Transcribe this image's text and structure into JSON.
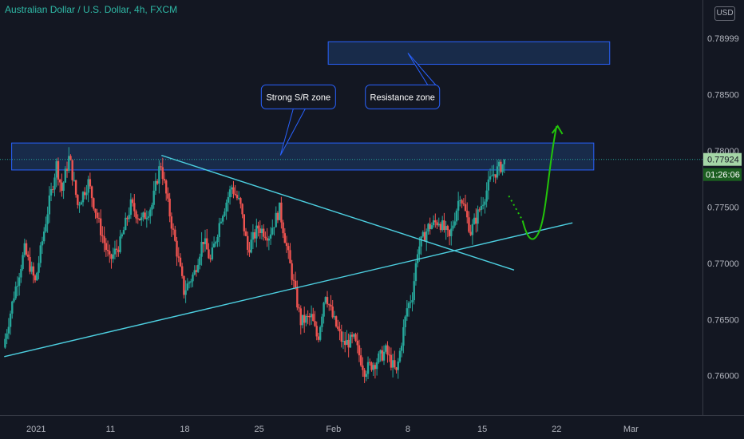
{
  "header": {
    "title": "Australian Dollar / U.S. Dollar, 4h, FXCM",
    "currency": "USD"
  },
  "colors": {
    "background": "#131722",
    "bull": "#26a69a",
    "bear": "#ef5350",
    "zone_fill": "#1e3d6b",
    "zone_border": "#2962ff",
    "trendline": "#4dd0e1",
    "projection": "#22c40a",
    "axis_text": "#b2b5be"
  },
  "chart_data": {
    "type": "candlestick",
    "title": "Australian Dollar / U.S. Dollar, 4h, FXCM",
    "x_ticks": [
      "2021",
      "11",
      "18",
      "25",
      "Feb",
      "8",
      "15",
      "22",
      "Mar"
    ],
    "x_tick_days": [
      4,
      11,
      18,
      25,
      32,
      39,
      46,
      53,
      60
    ],
    "x_range_days": [
      1,
      63
    ],
    "y_ticks": [
      "0.76000",
      "0.76500",
      "0.77000",
      "0.77500",
      "0.78000",
      "0.78500",
      "0.78999"
    ],
    "y_tick_values": [
      0.76,
      0.765,
      0.77,
      0.775,
      0.78,
      0.785,
      0.79
    ],
    "ylim": [
      0.757,
      0.7915
    ],
    "last_price": "0.77924",
    "last_price_value": 0.77924,
    "countdown": "01:26:06",
    "grid": false,
    "anchors": [
      {
        "day": 1.0,
        "price": 0.7625
      },
      {
        "day": 2.0,
        "price": 0.7672
      },
      {
        "day": 3.0,
        "price": 0.7712
      },
      {
        "day": 4.0,
        "price": 0.7683
      },
      {
        "day": 5.0,
        "price": 0.7738
      },
      {
        "day": 6.0,
        "price": 0.7788
      },
      {
        "day": 6.5,
        "price": 0.7765
      },
      {
        "day": 7.2,
        "price": 0.7795
      },
      {
        "day": 8.0,
        "price": 0.7752
      },
      {
        "day": 9.0,
        "price": 0.7772
      },
      {
        "day": 10.0,
        "price": 0.7735
      },
      {
        "day": 11.0,
        "price": 0.7702
      },
      {
        "day": 12.0,
        "price": 0.7718
      },
      {
        "day": 13.0,
        "price": 0.7752
      },
      {
        "day": 14.0,
        "price": 0.7738
      },
      {
        "day": 15.0,
        "price": 0.7752
      },
      {
        "day": 15.8,
        "price": 0.779
      },
      {
        "day": 16.5,
        "price": 0.7752
      },
      {
        "day": 17.5,
        "price": 0.7702
      },
      {
        "day": 18.0,
        "price": 0.7675
      },
      {
        "day": 19.0,
        "price": 0.7692
      },
      {
        "day": 19.8,
        "price": 0.7722
      },
      {
        "day": 20.5,
        "price": 0.7702
      },
      {
        "day": 21.5,
        "price": 0.7742
      },
      {
        "day": 22.5,
        "price": 0.7768
      },
      {
        "day": 23.3,
        "price": 0.7752
      },
      {
        "day": 24.0,
        "price": 0.7712
      },
      {
        "day": 25.0,
        "price": 0.7732
      },
      {
        "day": 26.0,
        "price": 0.7725
      },
      {
        "day": 27.0,
        "price": 0.7748
      },
      {
        "day": 28.0,
        "price": 0.7698
      },
      {
        "day": 29.0,
        "price": 0.7648
      },
      {
        "day": 30.0,
        "price": 0.7652
      },
      {
        "day": 30.6,
        "price": 0.7632
      },
      {
        "day": 31.3,
        "price": 0.7675
      },
      {
        "day": 32.0,
        "price": 0.7652
      },
      {
        "day": 33.0,
        "price": 0.7628
      },
      {
        "day": 34.0,
        "price": 0.7632
      },
      {
        "day": 35.0,
        "price": 0.7605
      },
      {
        "day": 36.0,
        "price": 0.7612
      },
      {
        "day": 37.0,
        "price": 0.7622
      },
      {
        "day": 38.0,
        "price": 0.7602
      },
      {
        "day": 39.0,
        "price": 0.766
      },
      {
        "day": 39.5,
        "price": 0.7672
      },
      {
        "day": 40.0,
        "price": 0.7712
      },
      {
        "day": 41.0,
        "price": 0.7732
      },
      {
        "day": 42.0,
        "price": 0.7738
      },
      {
        "day": 43.0,
        "price": 0.7722
      },
      {
        "day": 44.0,
        "price": 0.7762
      },
      {
        "day": 45.0,
        "price": 0.7728
      },
      {
        "day": 46.0,
        "price": 0.7752
      },
      {
        "day": 47.0,
        "price": 0.7778
      },
      {
        "day": 48.0,
        "price": 0.7788
      }
    ],
    "zones": [
      {
        "label": "Strong S/R zone",
        "from_day": 1.7,
        "to_day": 56.5,
        "price_low": 0.7783,
        "price_high": 0.7807
      },
      {
        "label": "Resistance zone",
        "from_day": 31.5,
        "to_day": 58.0,
        "price_low": 0.7877,
        "price_high": 0.7897
      }
    ],
    "trendlines": [
      {
        "from": {
          "day": 1.0,
          "price": 0.7617
        },
        "to": {
          "day": 54.5,
          "price": 0.7736
        }
      },
      {
        "from": {
          "day": 15.8,
          "price": 0.7796
        },
        "to": {
          "day": 49.0,
          "price": 0.7694
        }
      }
    ],
    "projection": {
      "dotted": [
        {
          "day": 48.5,
          "price": 0.776
        },
        {
          "day": 49.8,
          "price": 0.7738
        }
      ],
      "curve": [
        {
          "day": 49.8,
          "price": 0.7738
        },
        {
          "day": 50.5,
          "price": 0.7722
        },
        {
          "day": 51.3,
          "price": 0.7727
        },
        {
          "day": 52.2,
          "price": 0.7785
        },
        {
          "day": 53.0,
          "price": 0.7822
        }
      ],
      "arrow_tip": {
        "day": 53.1,
        "price": 0.7822
      }
    },
    "callouts": [
      {
        "text": "Strong S/R zone",
        "box_day": 25.2,
        "box_price": 0.7848,
        "pointer": {
          "day": 27.0,
          "price": 0.7796
        }
      },
      {
        "text": "Resistance zone",
        "box_day": 35.0,
        "box_price": 0.7848,
        "pointer": {
          "day": 39.0,
          "price": 0.7887
        }
      }
    ]
  }
}
